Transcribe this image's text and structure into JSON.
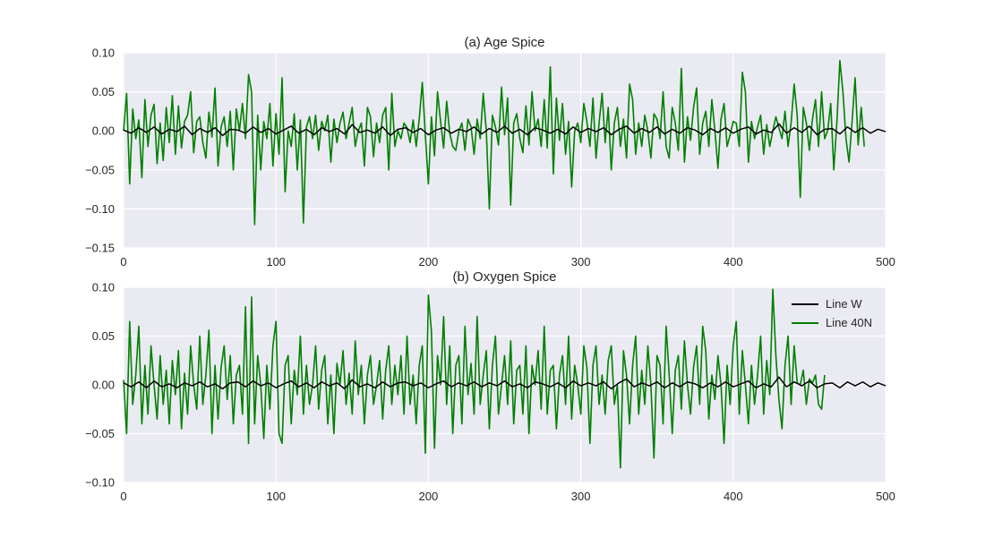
{
  "colors": {
    "background": "#ffffff",
    "axes_face": "#EAEAF2",
    "grid": "#ffffff",
    "line_w": "#000000",
    "line_40n": "#008000",
    "text": "#262626"
  },
  "chart_data": [
    {
      "type": "line",
      "title": "(a) Age Spice",
      "xlabel": "",
      "ylabel": "",
      "xlim": [
        0,
        500
      ],
      "ylim": [
        -0.15,
        0.1
      ],
      "xticks": [
        "0",
        "100",
        "200",
        "300",
        "400",
        "500"
      ],
      "yticks": [
        "0.10",
        "0.05",
        "0.00",
        "−0.05",
        "−0.10",
        "−0.15"
      ],
      "grid": true,
      "legend": "none",
      "series": [
        {
          "name": "Line W",
          "color": "#000000",
          "x_step": 5,
          "values": [
            0.001,
            -0.003,
            0.004,
            -0.002,
            0.005,
            -0.004,
            0.002,
            -0.001,
            0.006,
            -0.005,
            0.003,
            -0.002,
            0.004,
            -0.006,
            0.002,
            0.001,
            -0.003,
            0.005,
            -0.002,
            0.003,
            -0.004,
            0.001,
            0.006,
            -0.003,
            0.002,
            -0.005,
            0.004,
            -0.001,
            0.003,
            -0.004,
            0.008,
            -0.002,
            0.001,
            -0.003,
            0.005,
            -0.006,
            0.002,
            0.004,
            -0.002,
            0.003,
            -0.005,
            0.001,
            0.004,
            -0.003,
            0.002,
            -0.001,
            0.005,
            -0.004,
            0.003,
            -0.002,
            0.006,
            -0.003,
            0.002,
            -0.005,
            0.004,
            0.001,
            -0.003,
            0.002,
            -0.004,
            0.005,
            -0.002,
            0.003,
            -0.001,
            0.004,
            -0.005,
            0.002,
            0.006,
            -0.003,
            0.003,
            -0.002,
            0.005,
            -0.004,
            0.002,
            -0.003,
            0.004,
            0.001,
            -0.005,
            0.003,
            -0.002,
            0.004,
            -0.003,
            0.002,
            0.005,
            -0.004,
            0.001,
            -0.002,
            0.009,
            -0.003,
            0.004,
            -0.002,
            0.006,
            -0.005,
            0.002,
            0.003,
            -0.004,
            0.005,
            -0.002,
            0.004,
            -0.003,
            0.002,
            -0.001
          ]
        },
        {
          "name": "Line 40N",
          "color": "#008000",
          "x_step": 2,
          "values": [
            0.0,
            0.048,
            -0.068,
            0.028,
            -0.01,
            0.014,
            -0.06,
            0.04,
            -0.02,
            0.02,
            0.034,
            -0.042,
            0.01,
            -0.038,
            0.03,
            -0.015,
            0.045,
            -0.03,
            0.032,
            -0.022,
            0.012,
            0.02,
            0.05,
            -0.028,
            0.012,
            0.018,
            -0.015,
            -0.035,
            0.024,
            -0.008,
            0.055,
            -0.045,
            0.005,
            0.018,
            -0.02,
            0.025,
            -0.05,
            0.028,
            0.0,
            0.035,
            -0.01,
            0.072,
            0.05,
            -0.12,
            0.02,
            -0.05,
            0.012,
            -0.01,
            0.035,
            -0.045,
            0.022,
            -0.03,
            0.068,
            -0.078,
            0.0,
            -0.02,
            0.022,
            -0.05,
            0.014,
            -0.118,
            0.005,
            0.018,
            -0.01,
            0.02,
            -0.025,
            0.012,
            0.0,
            0.02,
            -0.04,
            0.015,
            -0.015,
            0.01,
            0.024,
            -0.01,
            0.01,
            0.03,
            -0.02,
            0.0,
            0.01,
            -0.045,
            0.03,
            0.018,
            -0.033,
            0.01,
            -0.015,
            0.02,
            0.03,
            -0.05,
            0.048,
            -0.02,
            0.0,
            -0.01,
            0.01,
            0.004,
            -0.015,
            0.014,
            -0.02,
            0.015,
            0.062,
            -0.005,
            -0.068,
            0.018,
            -0.032,
            0.05,
            0.012,
            -0.022,
            0.038,
            -0.003,
            -0.02,
            -0.025,
            0.0,
            0.01,
            -0.025,
            0.015,
            0.005,
            -0.03,
            0.015,
            -0.01,
            0.048,
            0.0,
            -0.1,
            0.02,
            0.005,
            -0.018,
            0.056,
            -0.005,
            0.042,
            -0.095,
            0.01,
            0.022,
            -0.01,
            -0.028,
            0.032,
            -0.018,
            0.05,
            0.0,
            0.015,
            -0.02,
            0.04,
            -0.022,
            0.082,
            -0.055,
            0.042,
            -0.012,
            0.035,
            -0.03,
            0.012,
            -0.072,
            0.0,
            0.01,
            -0.015,
            0.035,
            0.012,
            -0.02,
            0.042,
            -0.035,
            0.01,
            0.048,
            -0.015,
            0.03,
            -0.05,
            0.01,
            0.03,
            -0.02,
            0.015,
            -0.035,
            0.06,
            0.04,
            -0.03,
            0.01,
            -0.02,
            0.02,
            0.0,
            -0.035,
            0.022,
            0.015,
            -0.01,
            0.05,
            -0.02,
            -0.035,
            0.03,
            0.01,
            -0.025,
            0.08,
            -0.04,
            0.018,
            -0.012,
            0.03,
            0.055,
            -0.03,
            0.01,
            0.025,
            -0.02,
            0.04,
            0.0,
            -0.048,
            0.015,
            0.035,
            -0.02,
            -0.005,
            0.012,
            0.01,
            -0.02,
            0.075,
            0.05,
            -0.04,
            0.012,
            -0.01,
            0.005,
            0.02,
            -0.03,
            0.008,
            -0.02,
            0.0,
            0.018,
            0.004,
            -0.01,
            0.025,
            -0.02,
            0.01,
            0.06,
            0.02,
            -0.085,
            0.03,
            0.01,
            -0.025,
            0.015,
            0.04,
            -0.02,
            0.05,
            -0.01,
            0.0,
            0.035,
            -0.05,
            0.01,
            0.09,
            0.05,
            -0.01,
            -0.04,
            0.012,
            0.068,
            -0.018,
            0.03,
            -0.02
          ]
        }
      ]
    },
    {
      "type": "line",
      "title": "(b) Oxygen Spice",
      "xlabel": "",
      "ylabel": "",
      "xlim": [
        0,
        500
      ],
      "ylim": [
        -0.1,
        0.1
      ],
      "xticks": [
        "0",
        "100",
        "200",
        "300",
        "400",
        "500"
      ],
      "yticks": [
        "0.10",
        "0.05",
        "0.00",
        "−0.05",
        "−0.10"
      ],
      "grid": true,
      "legend": "top-right",
      "series": [
        {
          "name": "Line W",
          "color": "#000000",
          "x_step": 5,
          "values": [
            0.002,
            -0.002,
            0.003,
            -0.003,
            0.004,
            -0.002,
            0.001,
            -0.003,
            0.002,
            -0.001,
            0.003,
            -0.002,
            0.001,
            -0.004,
            0.002,
            0.003,
            -0.002,
            0.004,
            -0.001,
            0.002,
            -0.003,
            0.001,
            0.004,
            -0.002,
            0.002,
            -0.003,
            0.003,
            -0.001,
            0.002,
            -0.004,
            0.005,
            -0.002,
            0.001,
            -0.003,
            0.003,
            -0.002,
            0.002,
            0.003,
            -0.001,
            0.002,
            -0.003,
            0.001,
            0.004,
            -0.002,
            0.002,
            -0.001,
            0.003,
            -0.002,
            0.002,
            -0.001,
            0.004,
            -0.002,
            0.001,
            -0.003,
            0.003,
            0.001,
            -0.002,
            0.002,
            -0.003,
            0.004,
            -0.001,
            0.002,
            -0.001,
            0.003,
            -0.004,
            0.002,
            0.006,
            -0.002,
            0.002,
            -0.001,
            0.003,
            -0.003,
            0.002,
            -0.002,
            0.003,
            0.001,
            -0.003,
            0.002,
            -0.002,
            0.003,
            -0.002,
            0.001,
            0.004,
            -0.003,
            0.001,
            -0.002,
            0.008,
            -0.002,
            0.003,
            -0.001,
            0.004,
            -0.003,
            0.001,
            0.002,
            -0.003,
            0.003,
            -0.001,
            0.003,
            -0.002,
            0.002,
            -0.001
          ]
        },
        {
          "name": "Line 40N",
          "color": "#008000",
          "x_step": 2,
          "values": [
            0.005,
            -0.05,
            0.065,
            -0.02,
            0.01,
            0.06,
            -0.04,
            0.02,
            -0.03,
            0.04,
            0.0,
            -0.035,
            0.03,
            -0.02,
            0.015,
            -0.04,
            0.025,
            -0.01,
            0.035,
            -0.045,
            0.012,
            -0.03,
            0.04,
            0.0,
            -0.025,
            0.05,
            -0.02,
            0.01,
            0.056,
            -0.05,
            0.02,
            -0.035,
            0.018,
            0.04,
            -0.015,
            0.03,
            -0.04,
            0.01,
            0.02,
            -0.03,
            0.08,
            -0.06,
            0.09,
            -0.04,
            0.03,
            0.0,
            -0.055,
            0.02,
            -0.025,
            0.04,
            0.065,
            -0.05,
            -0.06,
            0.02,
            0.03,
            -0.04,
            0.015,
            -0.01,
            0.05,
            -0.03,
            0.02,
            -0.02,
            0.0,
            0.04,
            -0.025,
            0.015,
            0.03,
            -0.04,
            0.01,
            -0.05,
            0.022,
            0.0,
            0.035,
            -0.02,
            0.012,
            -0.03,
            0.045,
            -0.01,
            0.02,
            -0.04,
            0.01,
            0.03,
            -0.02,
            0.0,
            0.025,
            -0.035,
            0.015,
            0.04,
            -0.02,
            0.02,
            -0.01,
            0.03,
            -0.03,
            0.05,
            -0.02,
            0.01,
            -0.04,
            0.02,
            0.04,
            -0.07,
            0.092,
            0.055,
            -0.065,
            0.03,
            0.0,
            0.07,
            -0.02,
            0.04,
            -0.05,
            0.02,
            0.03,
            -0.04,
            0.06,
            -0.01,
            0.022,
            -0.03,
            0.07,
            -0.02,
            0.01,
            0.035,
            -0.045,
            0.02,
            0.05,
            -0.03,
            0.0,
            0.03,
            -0.02,
            0.045,
            -0.04,
            0.015,
            0.02,
            -0.03,
            0.04,
            -0.05,
            0.02,
            0.0,
            0.035,
            -0.025,
            0.06,
            -0.03,
            0.015,
            0.02,
            -0.045,
            0.01,
            0.03,
            -0.02,
            0.05,
            -0.035,
            0.02,
            0.0,
            -0.03,
            0.04,
            0.018,
            -0.06,
            0.02,
            0.04,
            -0.02,
            0.01,
            -0.03,
            0.025,
            0.04,
            -0.02,
            0.0,
            -0.085,
            0.035,
            0.01,
            -0.04,
            0.02,
            0.05,
            -0.03,
            0.015,
            -0.02,
            0.04,
            0.0,
            -0.075,
            0.03,
            0.02,
            -0.04,
            0.06,
            0.01,
            -0.05,
            0.015,
            0.03,
            -0.025,
            0.045,
            0.0,
            -0.03,
            0.018,
            0.04,
            -0.02,
            0.06,
            0.035,
            -0.035,
            0.01,
            -0.015,
            0.03,
            0.0,
            -0.06,
            0.02,
            -0.02,
            0.04,
            0.065,
            -0.03,
            0.035,
            0.0,
            -0.04,
            0.02,
            -0.02,
            0.01,
            0.05,
            -0.03,
            0.025,
            -0.01,
            0.098,
            0.03,
            -0.015,
            -0.045,
            0.02,
            0.05,
            -0.02,
            0.04,
            0.002,
            0.0,
            0.015,
            -0.02,
            0.006,
            0.002,
            0.01,
            -0.02,
            -0.025,
            0.01
          ]
        }
      ]
    }
  ]
}
